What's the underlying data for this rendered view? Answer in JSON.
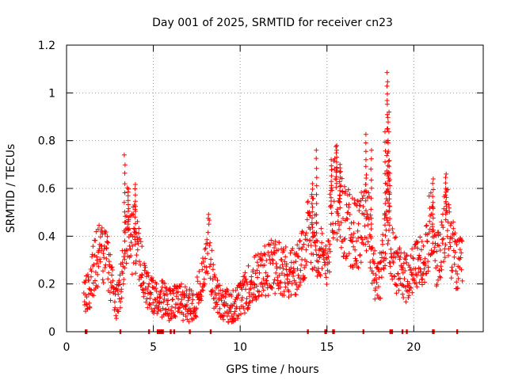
{
  "chart_data": {
    "type": "scatter",
    "title": "Day 001 of 2025, SRMTID for receiver cn23",
    "xlabel": "GPS time / hours",
    "ylabel": "SRMTID / TECUs",
    "xlim": [
      0,
      24
    ],
    "ylim": [
      0,
      1.2
    ],
    "xticks": [
      0,
      5,
      10,
      15,
      20
    ],
    "yticks": [
      0,
      0.2,
      0.4,
      0.6,
      0.8,
      1,
      1.2
    ],
    "ytick_labels": [
      "0",
      "0.2",
      "0.4",
      "0.6",
      "0.8",
      "1",
      "1.2"
    ],
    "grid": true,
    "marker": "+",
    "color": "#ff0000",
    "series": [
      {
        "name": "SRMTID",
        "profile": [
          [
            1.0,
            0.15
          ],
          [
            1.3,
            0.16
          ],
          [
            1.5,
            0.25
          ],
          [
            1.7,
            0.3
          ],
          [
            1.9,
            0.32
          ],
          [
            2.1,
            0.33
          ],
          [
            2.3,
            0.3
          ],
          [
            2.5,
            0.25
          ],
          [
            2.7,
            0.15
          ],
          [
            2.9,
            0.13
          ],
          [
            3.1,
            0.18
          ],
          [
            3.3,
            0.3
          ],
          [
            3.5,
            0.45
          ],
          [
            3.7,
            0.38
          ],
          [
            3.9,
            0.4
          ],
          [
            4.1,
            0.35
          ],
          [
            4.3,
            0.28
          ],
          [
            4.6,
            0.2
          ],
          [
            4.9,
            0.15
          ],
          [
            5.2,
            0.13
          ],
          [
            5.6,
            0.14
          ],
          [
            6.0,
            0.11
          ],
          [
            6.5,
            0.13
          ],
          [
            7.0,
            0.11
          ],
          [
            7.4,
            0.13
          ],
          [
            7.8,
            0.2
          ],
          [
            8.0,
            0.33
          ],
          [
            8.2,
            0.36
          ],
          [
            8.5,
            0.17
          ],
          [
            9.0,
            0.12
          ],
          [
            9.5,
            0.1
          ],
          [
            10.0,
            0.13
          ],
          [
            10.4,
            0.18
          ],
          [
            10.8,
            0.22
          ],
          [
            11.2,
            0.24
          ],
          [
            11.7,
            0.27
          ],
          [
            12.2,
            0.28
          ],
          [
            12.7,
            0.25
          ],
          [
            13.2,
            0.25
          ],
          [
            13.6,
            0.3
          ],
          [
            13.9,
            0.4
          ],
          [
            14.2,
            0.42
          ],
          [
            14.5,
            0.36
          ],
          [
            14.8,
            0.28
          ],
          [
            15.1,
            0.35
          ],
          [
            15.3,
            0.55
          ],
          [
            15.5,
            0.62
          ],
          [
            15.8,
            0.5
          ],
          [
            16.1,
            0.45
          ],
          [
            16.4,
            0.42
          ],
          [
            16.8,
            0.4
          ],
          [
            17.1,
            0.5
          ],
          [
            17.4,
            0.45
          ],
          [
            17.7,
            0.25
          ],
          [
            18.0,
            0.2
          ],
          [
            18.3,
            0.35
          ],
          [
            18.5,
            0.55
          ],
          [
            18.7,
            0.35
          ],
          [
            19.0,
            0.28
          ],
          [
            19.3,
            0.25
          ],
          [
            19.6,
            0.22
          ],
          [
            19.9,
            0.25
          ],
          [
            20.3,
            0.28
          ],
          [
            20.7,
            0.35
          ],
          [
            21.0,
            0.45
          ],
          [
            21.3,
            0.3
          ],
          [
            21.6,
            0.33
          ],
          [
            21.9,
            0.5
          ],
          [
            22.2,
            0.35
          ],
          [
            22.5,
            0.27
          ],
          [
            22.8,
            0.28
          ]
        ],
        "peaks": [
          [
            3.35,
            0.74
          ],
          [
            3.55,
            0.6
          ],
          [
            3.95,
            0.62
          ],
          [
            14.4,
            0.76
          ],
          [
            15.55,
            0.78
          ],
          [
            15.75,
            0.7
          ],
          [
            17.25,
            0.83
          ],
          [
            17.55,
            0.76
          ],
          [
            18.35,
            0.84
          ],
          [
            18.45,
            1.09
          ],
          [
            18.5,
            1.05
          ],
          [
            18.55,
            0.92
          ],
          [
            21.1,
            0.64
          ],
          [
            21.85,
            0.66
          ],
          [
            14.15,
            0.62
          ],
          [
            15.25,
            0.72
          ],
          [
            18.6,
            0.72
          ]
        ],
        "zero_markers": [
          1.1,
          1.15,
          3.1,
          4.75,
          5.25,
          5.35,
          5.45,
          5.55,
          6.0,
          6.2,
          7.1,
          8.3,
          13.9,
          14.9,
          14.95,
          15.35,
          15.4,
          17.1,
          18.65,
          18.75,
          19.35,
          19.6,
          21.1,
          21.15,
          22.5
        ]
      }
    ]
  }
}
